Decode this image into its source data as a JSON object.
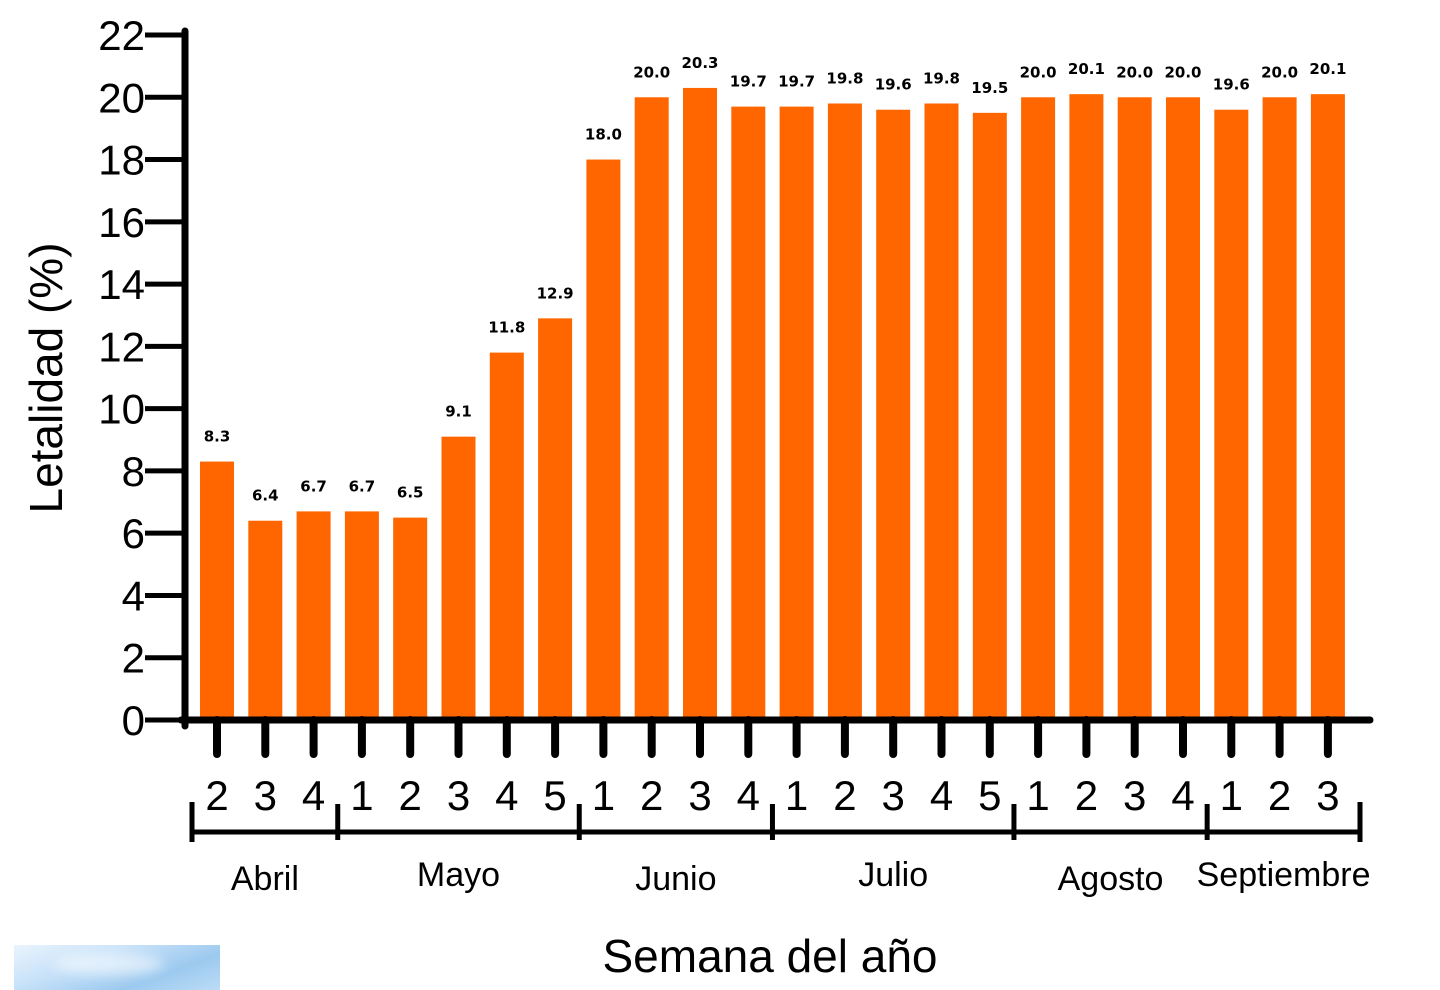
{
  "colors": {
    "bar": "#ff6600",
    "axis": "#000000",
    "text": "#000000"
  },
  "chart_data": {
    "type": "bar",
    "title": "",
    "ylabel": "Letalidad (%)",
    "xlabel": "Semana del año",
    "ylim": [
      0,
      22
    ],
    "yticks": [
      0,
      2,
      4,
      6,
      8,
      10,
      12,
      14,
      16,
      18,
      20,
      22
    ],
    "grid": false,
    "categories": [
      "2",
      "3",
      "4",
      "1",
      "2",
      "3",
      "4",
      "5",
      "1",
      "2",
      "3",
      "4",
      "1",
      "2",
      "3",
      "4",
      "5",
      "1",
      "2",
      "3",
      "4",
      "1",
      "2",
      "3"
    ],
    "values": [
      8.3,
      6.4,
      6.7,
      6.7,
      6.5,
      9.1,
      11.8,
      12.9,
      18.0,
      20.0,
      20.3,
      19.7,
      19.7,
      19.8,
      19.6,
      19.8,
      19.5,
      20.0,
      20.1,
      20.0,
      20.0,
      19.6,
      20.0,
      20.1
    ],
    "data_labels": [
      "8.3",
      "6.4",
      "6.7",
      "6.7",
      "6.5",
      "9.1",
      "11.8",
      "12.9",
      "18.0",
      "20.0",
      "20.3",
      "19.7",
      "19.7",
      "19.8",
      "19.6",
      "19.8",
      "19.5",
      "20.0",
      "20.1",
      "20.0",
      "20.0",
      "19.6",
      "20.0",
      "20.1"
    ],
    "groups": [
      {
        "name": "Abril",
        "count": 3
      },
      {
        "name": "Mayo",
        "count": 5
      },
      {
        "name": "Junio",
        "count": 4
      },
      {
        "name": "Julio",
        "count": 5
      },
      {
        "name": "Agosto",
        "count": 4
      },
      {
        "name": "Septiembre",
        "count": 3
      }
    ]
  }
}
